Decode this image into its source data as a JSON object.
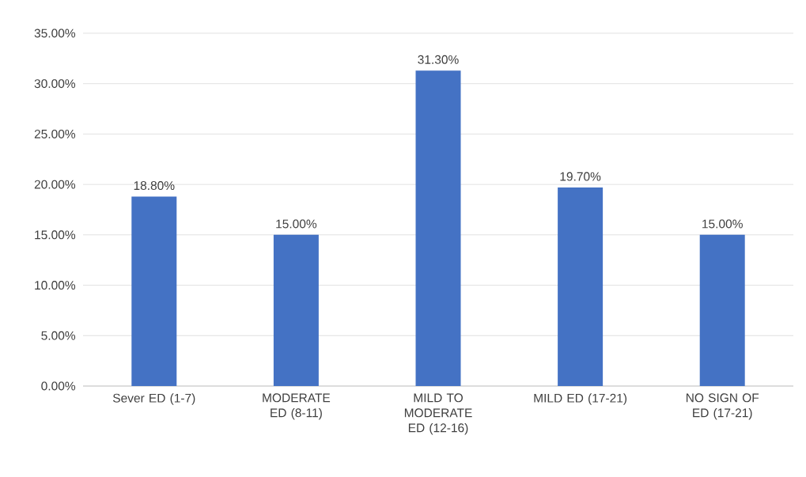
{
  "chart_data": {
    "type": "bar",
    "categories": [
      "Sever ED (1-7)",
      "MODERATE ED (8-11)",
      "MILD TO MODERATE ED (12-16)",
      "MILD ED (17-21)",
      "NO SIGN OF ED (17-21)"
    ],
    "values": [
      18.8,
      15.0,
      31.3,
      19.7,
      15.0
    ],
    "value_labels": [
      "18.80%",
      "15.00%",
      "31.30%",
      "19.70%",
      "15.00%"
    ],
    "color": "#4472c4",
    "ylim": [
      0,
      35
    ],
    "yticks": [
      {
        "value": 0,
        "label": "0.00%"
      },
      {
        "value": 5,
        "label": "5.00%"
      },
      {
        "value": 10,
        "label": "10.00%"
      },
      {
        "value": 15,
        "label": "15.00%"
      },
      {
        "value": 20,
        "label": "20.00%"
      },
      {
        "value": 25,
        "label": "25.00%"
      },
      {
        "value": 30,
        "label": "30.00%"
      },
      {
        "value": 35,
        "label": "35.00%"
      }
    ],
    "grid": "y"
  }
}
